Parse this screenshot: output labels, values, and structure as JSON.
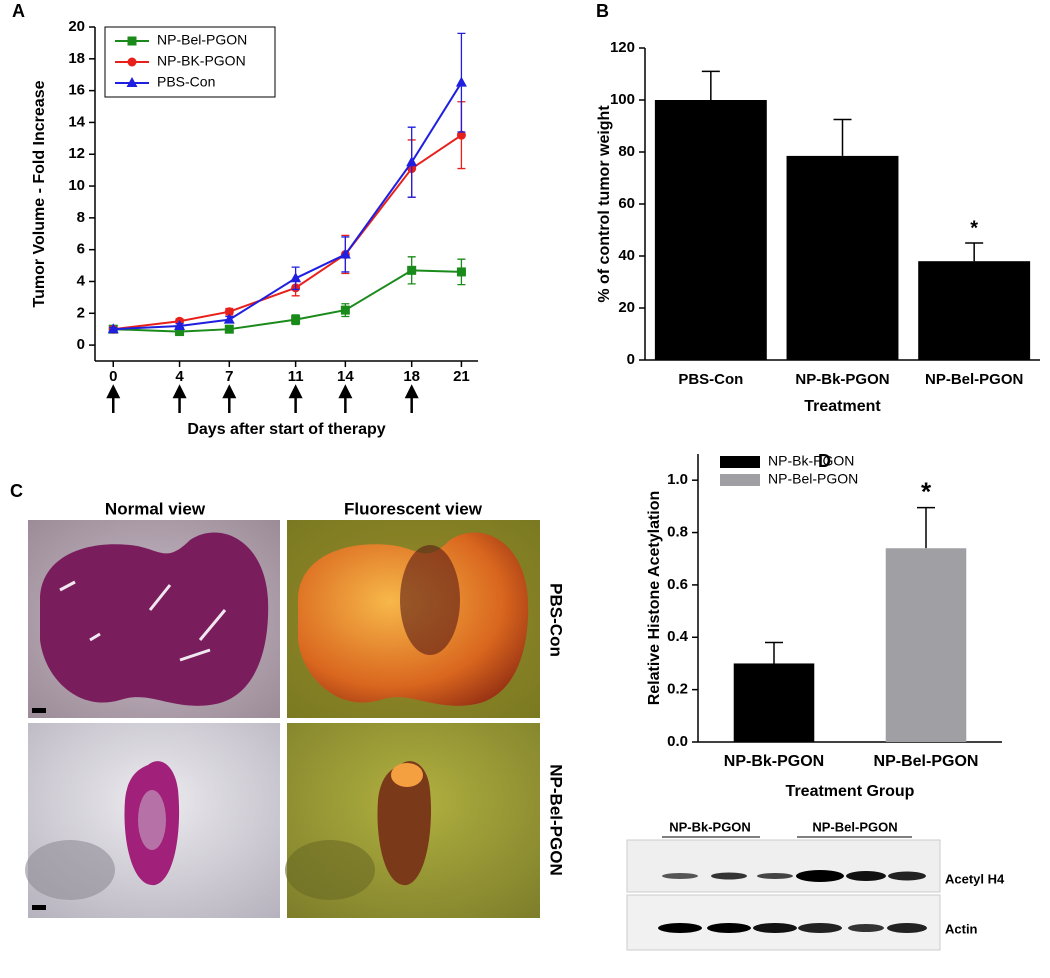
{
  "panel_labels": [
    "A",
    "B",
    "C",
    "D"
  ],
  "chart_data": [
    {
      "type": "line",
      "xlabel": "Days after start of therapy",
      "ylabel": "Tumor Volume - Fold Increase",
      "x": [
        0,
        4,
        7,
        11,
        14,
        18,
        21
      ],
      "xlim": [
        -1.1,
        22
      ],
      "xticks": [
        0,
        4,
        7,
        11,
        14,
        18,
        21
      ],
      "ylim": [
        -1,
        20
      ],
      "yticks": [
        0,
        2,
        4,
        6,
        8,
        10,
        12,
        14,
        16,
        18,
        20
      ],
      "treatment_days": [
        0,
        4,
        7,
        11,
        14,
        18
      ],
      "legend": "upper-left",
      "series": [
        {
          "name": "NP-Bel-PGON",
          "color": "#1a8a1a",
          "marker": "square",
          "values": [
            1.0,
            0.85,
            1.0,
            1.6,
            2.2,
            4.7,
            4.6
          ],
          "errors": [
            0.1,
            0.1,
            0.15,
            0.3,
            0.4,
            0.85,
            0.8
          ]
        },
        {
          "name": "NP-BK-PGON",
          "color": "#e8201c",
          "marker": "circle",
          "values": [
            1.0,
            1.5,
            2.1,
            3.6,
            5.7,
            11.1,
            13.2
          ],
          "errors": [
            0.1,
            0.15,
            0.2,
            0.5,
            1.2,
            1.8,
            2.1
          ]
        },
        {
          "name": "PBS-Con",
          "color": "#1f1fe0",
          "marker": "triangle",
          "values": [
            1.0,
            1.2,
            1.6,
            4.2,
            5.7,
            11.5,
            16.5
          ],
          "errors": [
            0.1,
            0.15,
            0.2,
            0.7,
            1.1,
            2.2,
            3.1
          ]
        }
      ]
    },
    {
      "type": "bar",
      "xlabel": "Treatment",
      "ylabel": "% of control tumor weight",
      "categories": [
        "PBS-Con",
        "NP-Bk-PGON",
        "NP-Bel-PGON"
      ],
      "values": [
        100,
        78.5,
        38
      ],
      "errors": [
        11,
        14,
        7
      ],
      "colors": [
        "#000000",
        "#000000",
        "#000000"
      ],
      "annotations": [
        null,
        null,
        "*"
      ],
      "ylim": [
        0,
        120
      ],
      "yticks": [
        0,
        20,
        40,
        60,
        80,
        100,
        120
      ]
    },
    {
      "type": "bar",
      "xlabel": "Treatment Group",
      "ylabel": "Relative Histone Acetylation",
      "categories": [
        "NP-Bk-PGON",
        "NP-Bel-PGON"
      ],
      "values": [
        0.3,
        0.74
      ],
      "errors": [
        0.08,
        0.155
      ],
      "colors": [
        "#000000",
        "#a0a0a4"
      ],
      "annotations": [
        null,
        "*"
      ],
      "legend": "upper-left",
      "ylim": [
        0,
        1.1
      ],
      "yticks": [
        {
          "value": 0,
          "label": "0.0"
        },
        0.2,
        0.4,
        0.6,
        0.8,
        {
          "value": 1,
          "label": "1.0"
        }
      ]
    }
  ],
  "photos": {
    "columns": [
      "Normal view",
      "Fluorescent view"
    ],
    "rows": [
      "PBS-Con",
      "NP-Bel-PGON"
    ]
  },
  "western_blot": {
    "groups": [
      "NP-Bk-PGON",
      "NP-Bel-PGON"
    ],
    "rows": [
      "Acetyl H4",
      "Actin"
    ]
  }
}
